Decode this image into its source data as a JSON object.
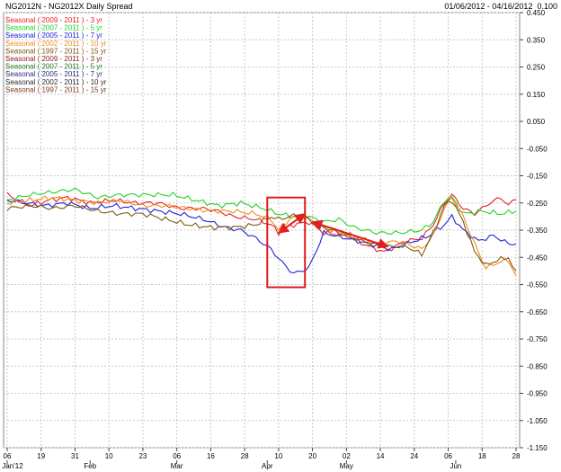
{
  "header": {
    "title": "NG2012N - NG2012X Daily  Spread",
    "date_range": "01/06/2012 - 04/16/2012",
    "last_value": "0.100"
  },
  "chart_data": {
    "type": "line",
    "title": "NG2012N - NG2012X Daily  Spread",
    "ylim": [
      -1.15,
      0.45
    ],
    "yticks": [
      "0.450",
      "0.350",
      "0.250",
      "0.150",
      "0.050",
      "-0.050",
      "-0.150",
      "-0.250",
      "-0.350",
      "-0.450",
      "-0.550",
      "-0.650",
      "-0.750",
      "-0.850",
      "-0.950",
      "-1.050",
      "-1.150"
    ],
    "ytick_values": [
      0.45,
      0.35,
      0.25,
      0.15,
      0.05,
      -0.05,
      -0.15,
      -0.25,
      -0.35,
      -0.45,
      -0.55,
      -0.65,
      -0.75,
      -0.85,
      -0.95,
      -1.05,
      -1.15
    ],
    "xticks": [
      "06",
      "19",
      "31",
      "10",
      "23",
      "06",
      "16",
      "28",
      "10",
      "20",
      "02",
      "14",
      "24",
      "06",
      "18",
      "28"
    ],
    "xtick_index": [
      0,
      9,
      18,
      27,
      36,
      45,
      54,
      63,
      72,
      81,
      90,
      99,
      108,
      117,
      126,
      135
    ],
    "months": [
      {
        "label": "Jan'12",
        "index": 0
      },
      {
        "label": "Feb",
        "index": 22
      },
      {
        "label": "Mar",
        "index": 45
      },
      {
        "label": "Apr",
        "index": 69
      },
      {
        "label": "May",
        "index": 90
      },
      {
        "label": "Jun",
        "index": 119
      }
    ],
    "n_points": 136,
    "grid": true,
    "legend_position": "top-left",
    "series": [
      {
        "name": "Seasonal ( 2009 - 2011 ) - 3 yr",
        "color": "#e8202a",
        "anchors": [
          [
            0,
            -0.22
          ],
          [
            6,
            -0.26
          ],
          [
            11,
            -0.24
          ],
          [
            16,
            -0.23
          ],
          [
            22,
            -0.25
          ],
          [
            28,
            -0.24
          ],
          [
            34,
            -0.25
          ],
          [
            40,
            -0.25
          ],
          [
            46,
            -0.27
          ],
          [
            52,
            -0.27
          ],
          [
            56,
            -0.28
          ],
          [
            60,
            -0.3
          ],
          [
            66,
            -0.31
          ],
          [
            70,
            -0.33
          ],
          [
            72,
            -0.36
          ],
          [
            74,
            -0.34
          ],
          [
            76,
            -0.33
          ],
          [
            80,
            -0.32
          ],
          [
            84,
            -0.36
          ],
          [
            90,
            -0.37
          ],
          [
            96,
            -0.41
          ],
          [
            100,
            -0.43
          ],
          [
            106,
            -0.39
          ],
          [
            110,
            -0.38
          ],
          [
            113,
            -0.33
          ],
          [
            116,
            -0.25
          ],
          [
            118,
            -0.22
          ],
          [
            121,
            -0.27
          ],
          [
            124,
            -0.29
          ],
          [
            128,
            -0.25
          ],
          [
            131,
            -0.23
          ],
          [
            133,
            -0.26
          ],
          [
            135,
            -0.23
          ]
        ]
      },
      {
        "name": "Seasonal ( 2007 - 2011 ) - 5 yr",
        "color": "#27d127",
        "anchors": [
          [
            0,
            -0.24
          ],
          [
            6,
            -0.22
          ],
          [
            12,
            -0.21
          ],
          [
            18,
            -0.2
          ],
          [
            24,
            -0.23
          ],
          [
            30,
            -0.22
          ],
          [
            36,
            -0.22
          ],
          [
            44,
            -0.22
          ],
          [
            50,
            -0.24
          ],
          [
            56,
            -0.26
          ],
          [
            62,
            -0.25
          ],
          [
            68,
            -0.27
          ],
          [
            72,
            -0.29
          ],
          [
            76,
            -0.3
          ],
          [
            80,
            -0.3
          ],
          [
            84,
            -0.32
          ],
          [
            88,
            -0.31
          ],
          [
            92,
            -0.34
          ],
          [
            98,
            -0.36
          ],
          [
            104,
            -0.36
          ],
          [
            110,
            -0.35
          ],
          [
            113,
            -0.32
          ],
          [
            116,
            -0.24
          ],
          [
            118,
            -0.23
          ],
          [
            121,
            -0.29
          ],
          [
            126,
            -0.28
          ],
          [
            131,
            -0.29
          ],
          [
            135,
            -0.28
          ]
        ]
      },
      {
        "name": "Seasonal ( 2005 - 2011 ) - 7 yr",
        "color": "#1f22d8",
        "anchors": [
          [
            0,
            -0.24
          ],
          [
            5,
            -0.25
          ],
          [
            10,
            -0.26
          ],
          [
            16,
            -0.25
          ],
          [
            22,
            -0.27
          ],
          [
            28,
            -0.26
          ],
          [
            34,
            -0.27
          ],
          [
            40,
            -0.28
          ],
          [
            46,
            -0.29
          ],
          [
            52,
            -0.31
          ],
          [
            58,
            -0.34
          ],
          [
            62,
            -0.35
          ],
          [
            66,
            -0.38
          ],
          [
            70,
            -0.42
          ],
          [
            73,
            -0.47
          ],
          [
            76,
            -0.51
          ],
          [
            78,
            -0.5
          ],
          [
            80,
            -0.49
          ],
          [
            84,
            -0.36
          ],
          [
            90,
            -0.38
          ],
          [
            96,
            -0.4
          ],
          [
            102,
            -0.42
          ],
          [
            108,
            -0.39
          ],
          [
            112,
            -0.37
          ],
          [
            116,
            -0.33
          ],
          [
            118,
            -0.3
          ],
          [
            121,
            -0.35
          ],
          [
            125,
            -0.39
          ],
          [
            129,
            -0.37
          ],
          [
            133,
            -0.4
          ],
          [
            135,
            -0.4
          ]
        ]
      },
      {
        "name": "Seasonal ( 2002 - 2011 ) - 10 yr",
        "color": "#f08a1a",
        "anchors": [
          [
            0,
            -0.25
          ],
          [
            6,
            -0.24
          ],
          [
            12,
            -0.23
          ],
          [
            18,
            -0.24
          ],
          [
            24,
            -0.25
          ],
          [
            30,
            -0.24
          ],
          [
            36,
            -0.26
          ],
          [
            42,
            -0.26
          ],
          [
            48,
            -0.27
          ],
          [
            54,
            -0.28
          ],
          [
            60,
            -0.28
          ],
          [
            66,
            -0.29
          ],
          [
            70,
            -0.31
          ],
          [
            72,
            -0.35
          ],
          [
            74,
            -0.32
          ],
          [
            76,
            -0.3
          ],
          [
            80,
            -0.31
          ],
          [
            86,
            -0.35
          ],
          [
            92,
            -0.37
          ],
          [
            98,
            -0.4
          ],
          [
            104,
            -0.39
          ],
          [
            110,
            -0.42
          ],
          [
            113,
            -0.37
          ],
          [
            116,
            -0.27
          ],
          [
            118,
            -0.23
          ],
          [
            121,
            -0.3
          ],
          [
            124,
            -0.4
          ],
          [
            127,
            -0.49
          ],
          [
            130,
            -0.47
          ],
          [
            133,
            -0.46
          ],
          [
            135,
            -0.52
          ]
        ]
      },
      {
        "name": "Seasonal ( 1997 - 2011 ) - 15 yr",
        "color": "#7a5a10",
        "anchors": [
          [
            0,
            -0.27
          ],
          [
            6,
            -0.26
          ],
          [
            12,
            -0.27
          ],
          [
            18,
            -0.26
          ],
          [
            24,
            -0.28
          ],
          [
            30,
            -0.29
          ],
          [
            36,
            -0.29
          ],
          [
            42,
            -0.31
          ],
          [
            48,
            -0.33
          ],
          [
            54,
            -0.34
          ],
          [
            60,
            -0.34
          ],
          [
            66,
            -0.33
          ],
          [
            70,
            -0.3
          ],
          [
            72,
            -0.31
          ],
          [
            75,
            -0.3
          ],
          [
            78,
            -0.29
          ],
          [
            82,
            -0.33
          ],
          [
            88,
            -0.36
          ],
          [
            94,
            -0.39
          ],
          [
            100,
            -0.41
          ],
          [
            106,
            -0.41
          ],
          [
            110,
            -0.44
          ],
          [
            113,
            -0.36
          ],
          [
            116,
            -0.26
          ],
          [
            118,
            -0.24
          ],
          [
            121,
            -0.32
          ],
          [
            124,
            -0.43
          ],
          [
            127,
            -0.48
          ],
          [
            130,
            -0.46
          ],
          [
            133,
            -0.45
          ],
          [
            135,
            -0.51
          ]
        ]
      },
      {
        "name": "Seasonal ( 2009 - 2011 ) - 3 yr",
        "color": "#8a2020",
        "anchors": []
      },
      {
        "name": "Seasonal ( 2007 - 2011 ) - 5 yr",
        "color": "#247a24",
        "anchors": []
      },
      {
        "name": "Seasonal ( 2005 - 2011 ) - 7 yr",
        "color": "#2a2a7a",
        "anchors": []
      },
      {
        "name": "Seasonal ( 2002 - 2011 ) - 10 yr",
        "color": "#2a2a2a",
        "anchors": []
      },
      {
        "name": "Seasonal ( 1997 - 2011 ) - 15 yr",
        "color": "#7a3a1a",
        "anchors": []
      }
    ],
    "annotations": {
      "highlight_box": {
        "x": [
          69,
          79
        ],
        "y": [
          -0.56,
          -0.23
        ],
        "color": "#dd1b1b"
      },
      "arrows": [
        {
          "from": [
            72,
            -0.36
          ],
          "to": [
            79,
            -0.29
          ],
          "color": "#e02020"
        },
        {
          "from": [
            81,
            -0.32
          ],
          "to": [
            101,
            -0.41
          ],
          "color": "#e02020"
        }
      ]
    }
  }
}
